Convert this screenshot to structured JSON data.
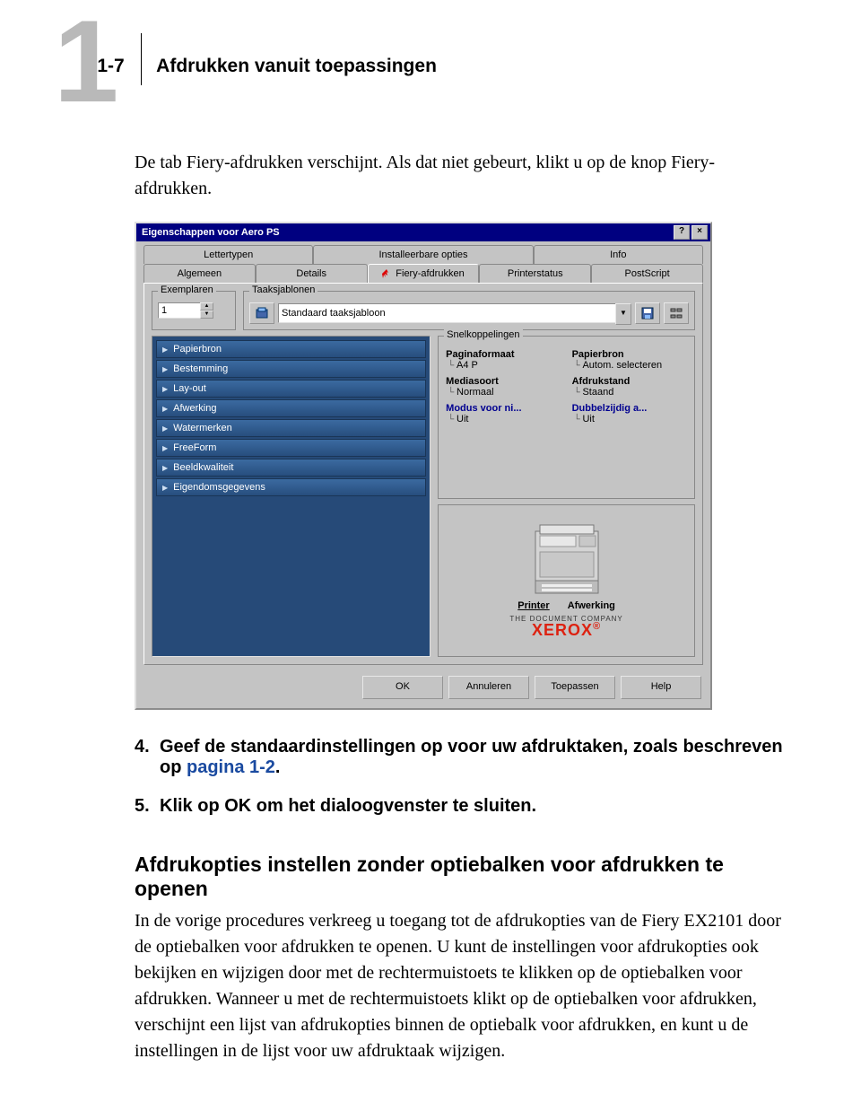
{
  "header": {
    "chapter_number": "1",
    "page_seq": "1-7",
    "chapter_title": "Afdrukken vanuit toepassingen"
  },
  "intro_para": "De tab Fiery-afdrukken verschijnt. Als dat niet gebeurt, klikt u op de knop Fiery-afdrukken.",
  "dialog": {
    "title": "Eigenschappen voor Aero PS",
    "helpbtn": "?",
    "closebtn": "×",
    "tabs_row1": [
      "Lettertypen",
      "Installeerbare opties",
      "Info"
    ],
    "tabs_row2": [
      "Algemeen",
      "Details",
      "Fiery-afdrukken",
      "Printerstatus",
      "PostScript"
    ],
    "active_tab_fiery": "Fiery-afdrukken",
    "groups": {
      "exemplaren_label": "Exemplaren",
      "exemplaren_value": "1",
      "taaksjablonen_label": "Taaksjablonen",
      "taaksjablonen_value": "Standaard taaksjabloon",
      "snelkoppelingen_label": "Snelkoppelingen"
    },
    "option_bars": [
      "Papierbron",
      "Bestemming",
      "Lay-out",
      "Afwerking",
      "Watermerken",
      "FreeForm",
      "Beeldkwaliteit",
      "Eigendomsgegevens"
    ],
    "snel_items": [
      {
        "label": "Paginaformaat",
        "value": "A4 P",
        "blue": false
      },
      {
        "label": "Papierbron",
        "value": "Autom. selecteren",
        "blue": false
      },
      {
        "label": "Mediasoort",
        "value": "Normaal",
        "blue": false
      },
      {
        "label": "Afdrukstand",
        "value": "Staand",
        "blue": false
      },
      {
        "label": "Modus voor ni...",
        "value": "Uit",
        "blue": true
      },
      {
        "label": "Dubbelzijdig a...",
        "value": "Uit",
        "blue": true
      }
    ],
    "preview_tabs": {
      "printer": "Printer",
      "afwerking": "Afwerking"
    },
    "doc_company": "THE DOCUMENT COMPANY",
    "brand": "XEROX",
    "buttons": {
      "ok": "OK",
      "cancel": "Annuleren",
      "apply": "Toepassen",
      "help": "Help"
    }
  },
  "steps": [
    {
      "num": "4.",
      "pre": "Geef de standaardinstellingen op voor uw afdruktaken, zoals beschreven op ",
      "link": "pagina 1-2",
      "post": "."
    },
    {
      "num": "5.",
      "pre": "Klik op OK om het dialoogvenster te sluiten.",
      "link": "",
      "post": ""
    }
  ],
  "subhead": "Afdrukopties instellen zonder optiebalken voor afdrukken te openen",
  "para2": "In de vorige procedures verkreeg u toegang tot de afdrukopties van de Fiery EX2101 door de optiebalken voor afdrukken te openen. U kunt de instellingen voor afdrukopties ook bekijken en wijzigen door met de rechtermuistoets te klikken op de optiebalken voor afdrukken. Wanneer u met de rechtermuistoets klikt op de optiebalken voor afdrukken, verschijnt een lijst van afdrukopties binnen de optiebalk voor afdrukken, en kunt u de instellingen in de lijst voor uw afdruktaak wijzigen."
}
